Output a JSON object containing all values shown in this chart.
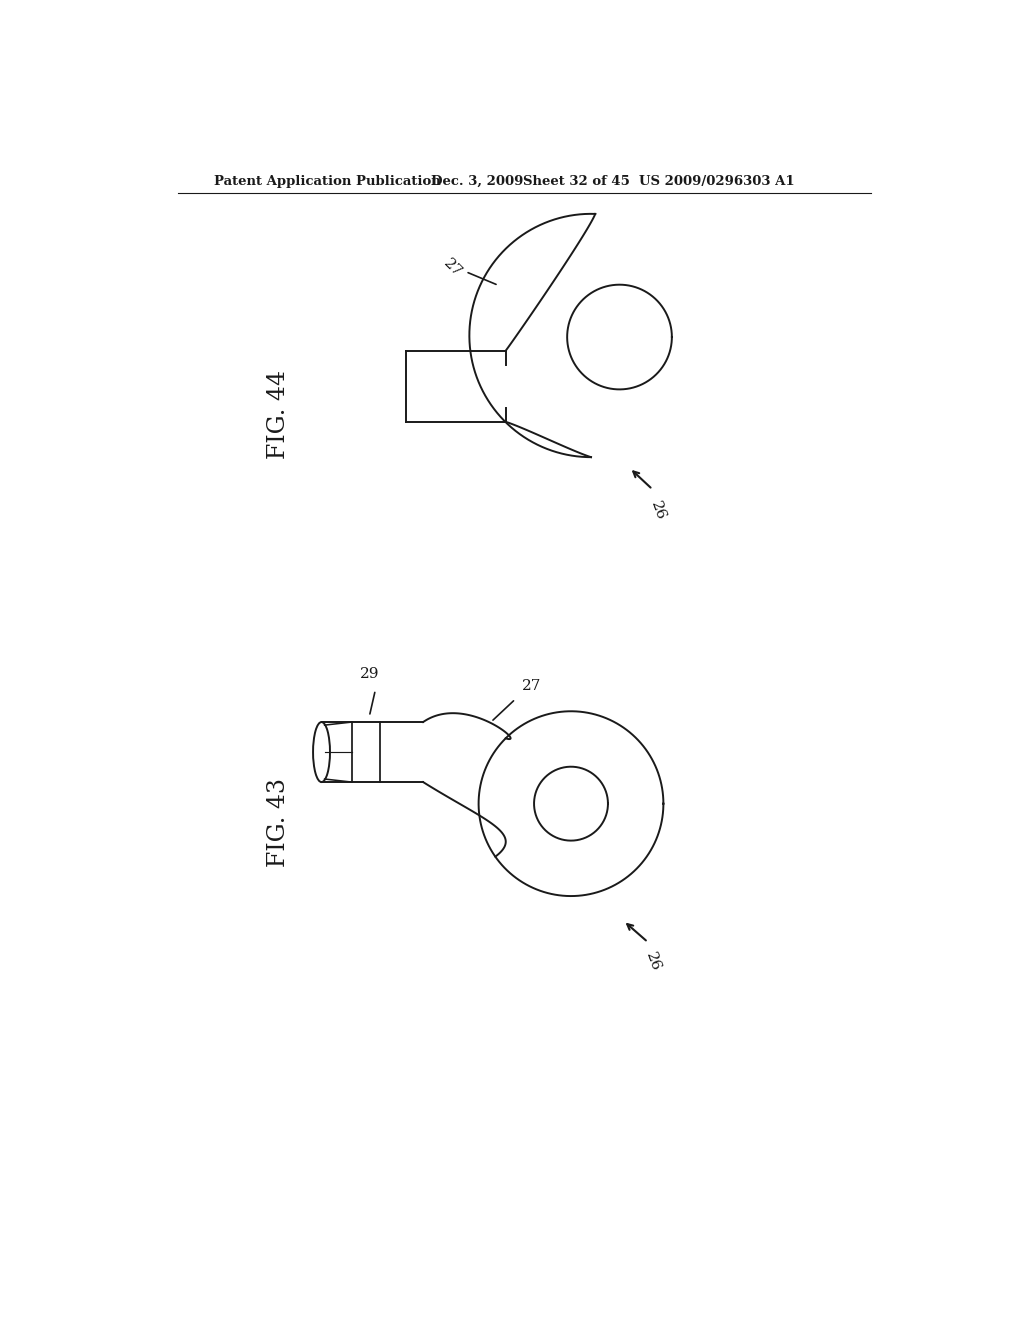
{
  "bg_color": "#ffffff",
  "line_color": "#1a1a1a",
  "header_left": "Patent Application Publication",
  "header_mid": "Dec. 3, 2009",
  "header_sheet": "Sheet 32 of 45",
  "header_patent": "US 2009/0296303 A1",
  "fig44_label": "FIG. 44",
  "fig43_label": "FIG. 43",
  "label_26": "26",
  "label_27": "27",
  "label_29": "29"
}
